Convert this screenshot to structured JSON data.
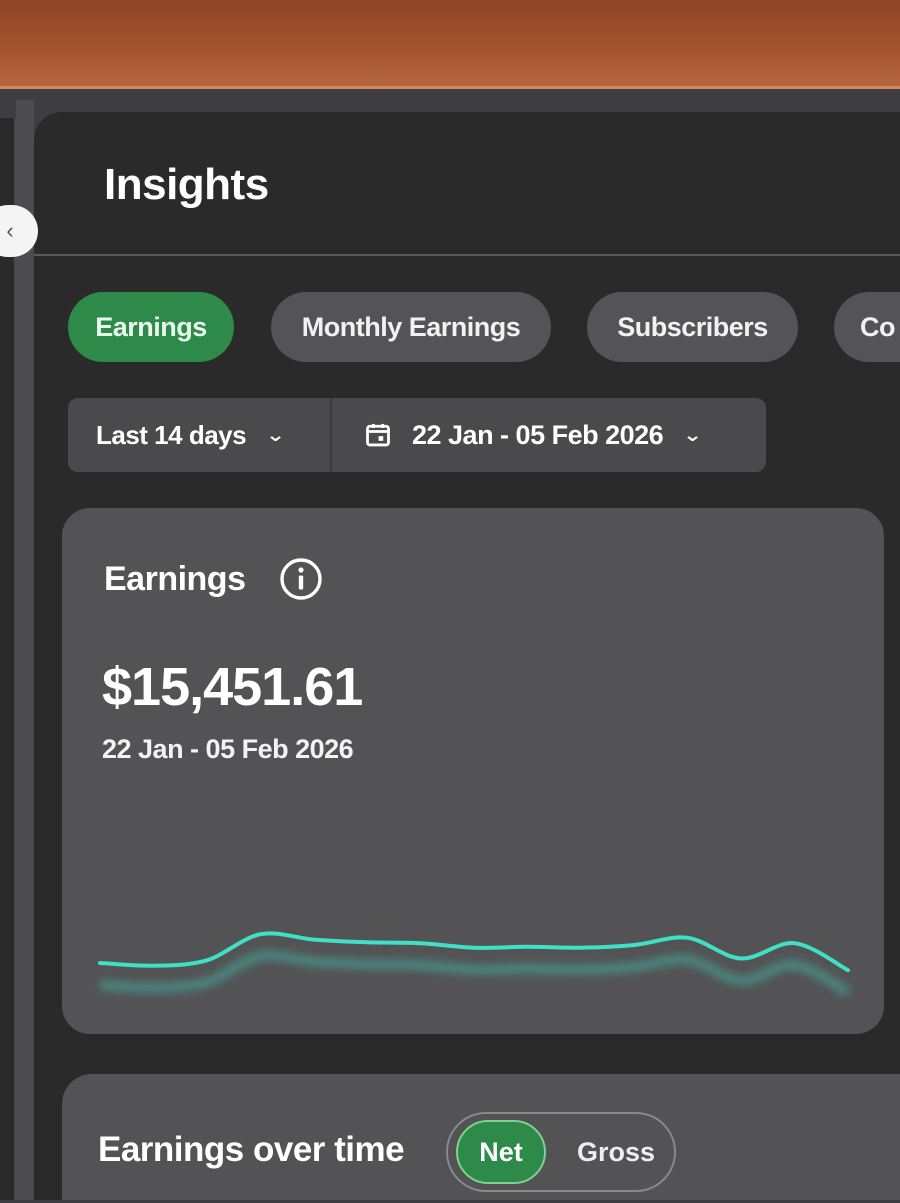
{
  "header": {
    "title": "Insights"
  },
  "sidebar": {
    "collapse_glyph": "‹"
  },
  "tabs": [
    {
      "label": "Earnings",
      "active": true
    },
    {
      "label": "Monthly Earnings",
      "active": false
    },
    {
      "label": "Subscribers",
      "active": false
    },
    {
      "label": "Co",
      "active": false
    }
  ],
  "filters": {
    "range_label": "Last 14 days",
    "date_range": "22 Jan - 05 Feb 2026",
    "chevron": "⌄"
  },
  "earnings_card": {
    "title": "Earnings",
    "amount": "$15,451.61",
    "period": "22 Jan - 05 Feb 2026",
    "chart_data": {
      "type": "line",
      "series": [
        {
          "values": [
            0.3,
            0.27,
            0.33,
            0.62,
            0.56,
            0.53,
            0.52,
            0.47,
            0.48,
            0.47,
            0.5,
            0.58,
            0.35,
            0.52,
            0.22
          ]
        }
      ],
      "line_color": "#3fe0c5"
    }
  },
  "over_time_card": {
    "title": "Earnings over time",
    "toggle_net": "Net",
    "toggle_gross": "Gross"
  },
  "colors": {
    "accent_green": "#2e8a49",
    "line_teal": "#3fe0c5",
    "background": "#2a2a2b",
    "card": "#535355"
  },
  "icons": {
    "info": "info-icon",
    "calendar": "calendar-icon",
    "chevron": "chevron-down-icon"
  }
}
